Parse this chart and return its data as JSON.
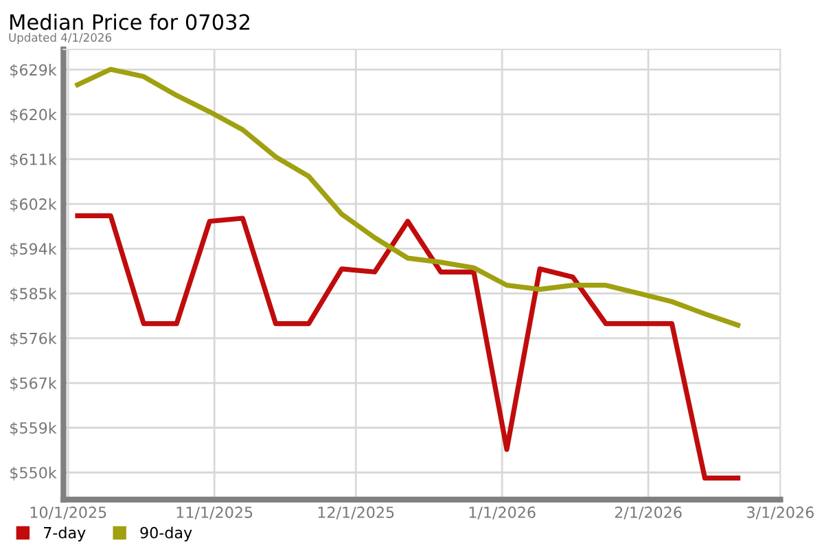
{
  "chart_data": {
    "type": "line",
    "title": "Median Price for 07032",
    "subtitle": "Updated 4/1/2026",
    "x": [
      "2025-10-03",
      "2025-10-10",
      "2025-10-17",
      "2025-10-24",
      "2025-10-31",
      "2025-11-07",
      "2025-11-14",
      "2025-11-21",
      "2025-11-28",
      "2025-12-05",
      "2025-12-12",
      "2025-12-19",
      "2025-12-26",
      "2026-01-02",
      "2026-01-09",
      "2026-01-16",
      "2026-01-23",
      "2026-01-30",
      "2026-02-06",
      "2026-02-13",
      "2026-02-20"
    ],
    "series": [
      {
        "name": "7-day",
        "color": "#c00c0c",
        "values": [
          600.2,
          600.2,
          579.1,
          579.1,
          599.1,
          599.7,
          579.1,
          579.1,
          589.8,
          589.2,
          599.1,
          589.2,
          589.2,
          554.5,
          589.8,
          588.2,
          579.1,
          579.1,
          579.1,
          548.9,
          548.9
        ]
      },
      {
        "name": "90-day",
        "color": "#a0a010",
        "values": [
          625.8,
          628.8,
          627.4,
          623.7,
          620.5,
          617.0,
          611.7,
          607.9,
          600.5,
          595.9,
          591.9,
          591.1,
          590.0,
          586.6,
          585.8,
          586.6,
          586.6,
          585.0,
          583.4,
          581.0,
          578.8
        ]
      }
    ],
    "xlim": [
      "2025-09-30",
      "2026-03-01"
    ],
    "xticks": [
      {
        "value": "2025-10-01",
        "label": "10/1/2025"
      },
      {
        "value": "2025-11-01",
        "label": "11/1/2025"
      },
      {
        "value": "2025-12-01",
        "label": "12/1/2025"
      },
      {
        "value": "2026-01-01",
        "label": "1/1/2026"
      },
      {
        "value": "2026-02-01",
        "label": "2/1/2026"
      },
      {
        "value": "2026-03-01",
        "label": "3/1/2026"
      }
    ],
    "ylim": [
      544.7,
      632.7
    ],
    "yticks": [
      {
        "value": 550,
        "label": "$550k"
      },
      {
        "value": 558.75,
        "label": "$559k"
      },
      {
        "value": 567.5,
        "label": "$567k"
      },
      {
        "value": 576.25,
        "label": "$576k"
      },
      {
        "value": 585,
        "label": "$585k"
      },
      {
        "value": 593.75,
        "label": "$594k"
      },
      {
        "value": 602.5,
        "label": "$602k"
      },
      {
        "value": 611.25,
        "label": "$611k"
      },
      {
        "value": 620,
        "label": "$620k"
      },
      {
        "value": 628.75,
        "label": "$629k"
      }
    ],
    "grid": true,
    "legend": "bottom left",
    "marker": "none",
    "line_style": "solid"
  }
}
